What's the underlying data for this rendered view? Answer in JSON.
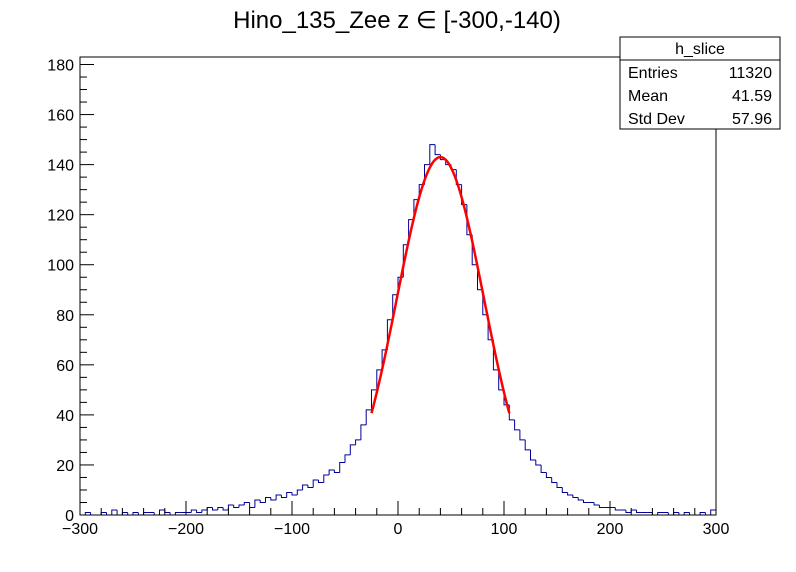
{
  "chart_data": {
    "type": "bar",
    "title": "Hino_135_Zee z  ∈ [-300,-140)",
    "xlabel": "",
    "ylabel": "",
    "xlim": [
      -300,
      300
    ],
    "ylim": [
      0,
      183
    ],
    "bin_width": 5,
    "bin_start": -300,
    "x_ticks": [
      "-300",
      "-200",
      "-100",
      "0",
      "100",
      "200",
      "300"
    ],
    "y_ticks": [
      "0",
      "20",
      "40",
      "60",
      "80",
      "100",
      "120",
      "140",
      "160",
      "180"
    ],
    "grid": false,
    "histogram_color": "#000099",
    "fit_color": "#ff0000",
    "values": [
      0,
      1,
      0,
      0,
      1,
      0,
      2,
      0,
      1,
      0,
      1,
      0,
      1,
      1,
      0,
      2,
      1,
      0,
      1,
      1,
      1,
      2,
      1,
      2,
      3,
      2,
      3,
      2,
      4,
      3,
      4,
      5,
      3,
      6,
      5,
      7,
      6,
      8,
      7,
      9,
      8,
      10,
      12,
      11,
      14,
      13,
      16,
      18,
      17,
      21,
      24,
      28,
      30,
      36,
      42,
      50,
      58,
      66,
      78,
      88,
      95,
      108,
      118,
      126,
      132,
      140,
      148,
      144,
      142,
      140,
      138,
      132,
      124,
      112,
      100,
      90,
      80,
      70,
      58,
      50,
      44,
      38,
      34,
      30,
      26,
      22,
      20,
      17,
      15,
      13,
      11,
      9,
      8,
      7,
      6,
      5,
      5,
      4,
      3,
      3,
      3,
      2,
      2,
      1,
      2,
      1,
      1,
      1,
      0,
      1,
      1,
      0,
      1,
      0,
      1,
      0,
      0,
      1,
      0,
      2
    ],
    "fit": {
      "function": "gaus",
      "constant": 143,
      "mean": 40,
      "sigma": 41,
      "range": [
        -25,
        105
      ]
    },
    "stats": {
      "name": "h_slice",
      "rows": [
        {
          "label": "Entries",
          "value": "11320"
        },
        {
          "label": "Mean",
          "value": "41.59"
        },
        {
          "label": "Std Dev",
          "value": "57.96"
        }
      ]
    }
  }
}
